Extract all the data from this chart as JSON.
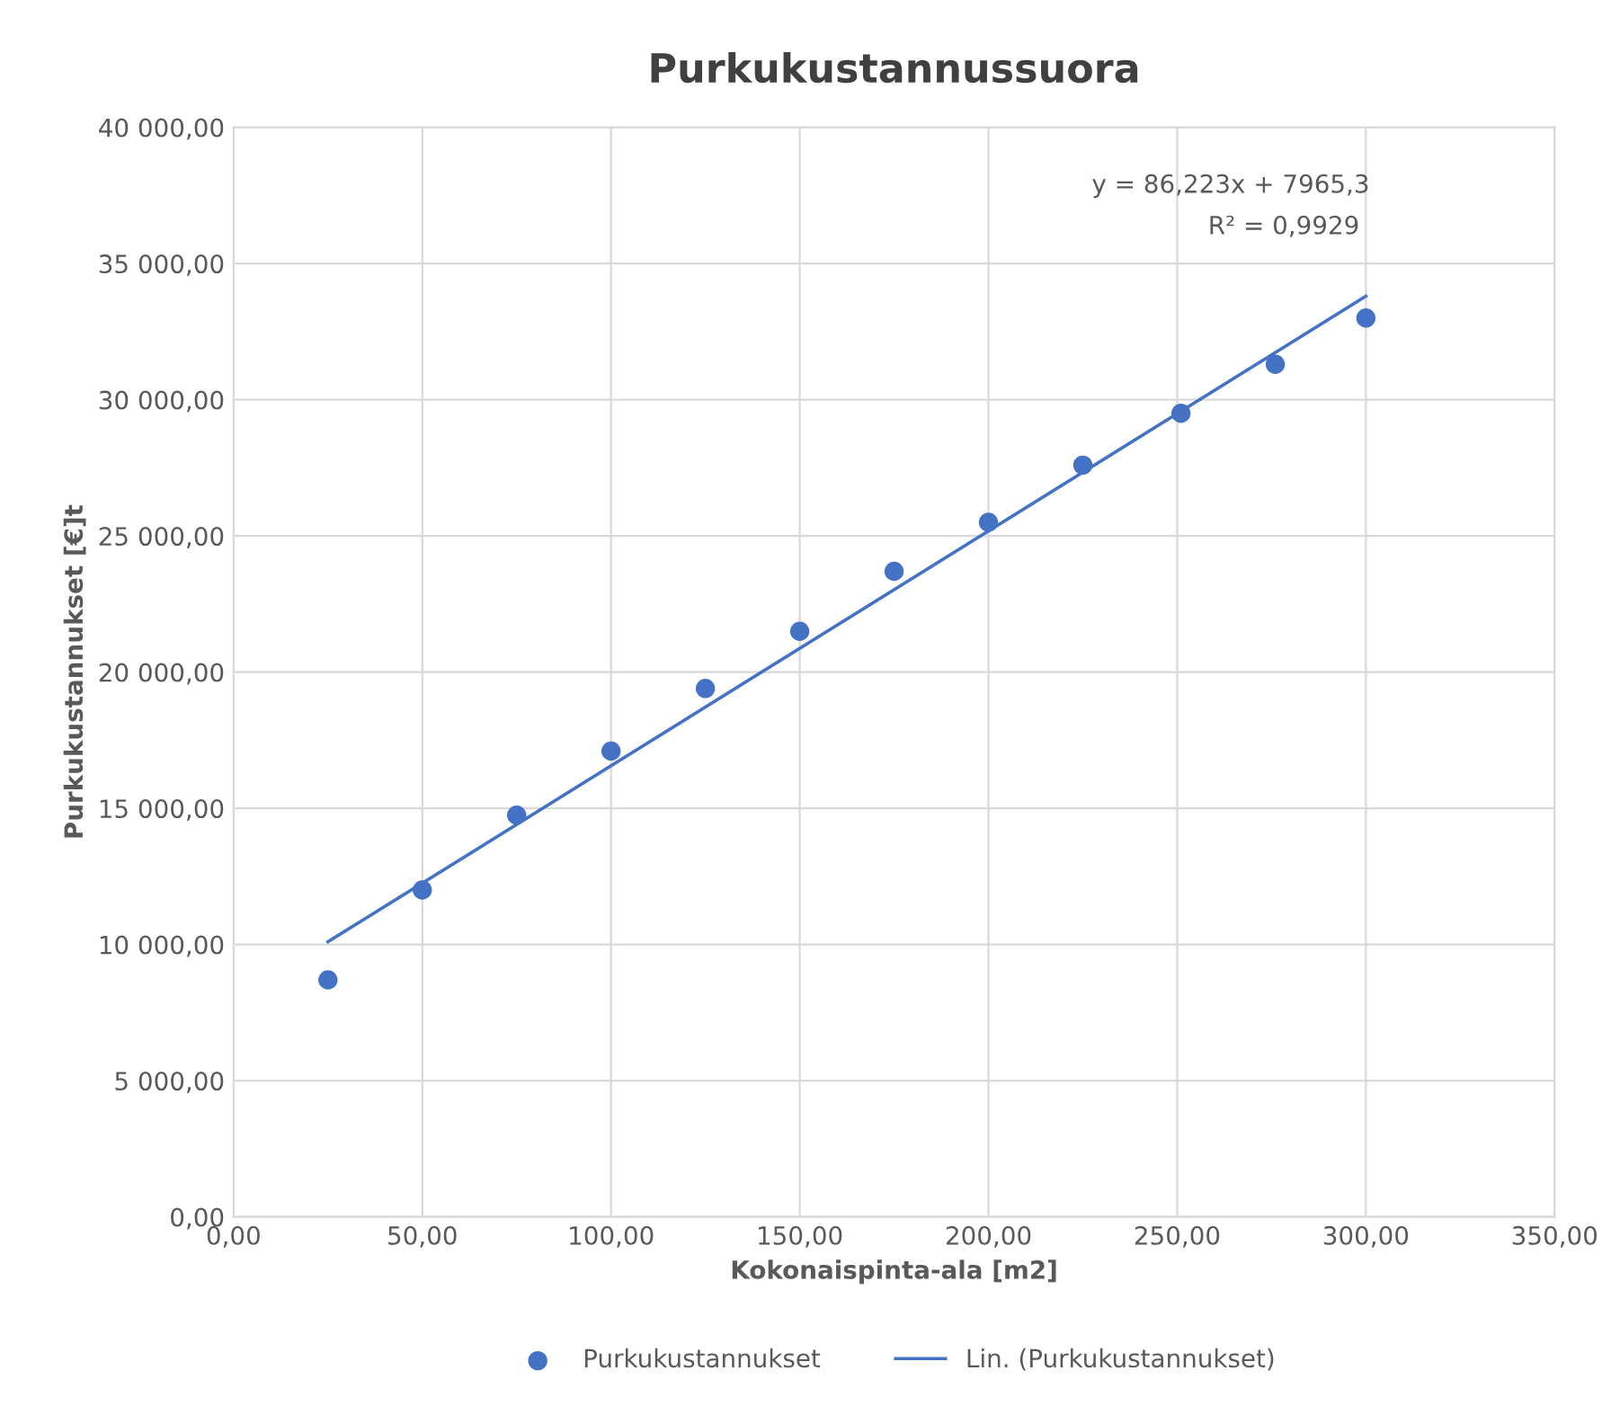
{
  "chart_data": {
    "type": "scatter",
    "title": "Purkukustannussuora",
    "xlabel": "Kokonaispinta-ala [m2]",
    "ylabel": "Purkukustannukset [€]t",
    "series": [
      {
        "name": "Purkukustannukset",
        "color": "#4472c4",
        "marker": "circle",
        "x": [
          25,
          50,
          75,
          100,
          125,
          150,
          175,
          200,
          225,
          251,
          276,
          300
        ],
        "values": [
          8700,
          12000,
          14750,
          17100,
          19400,
          21500,
          23700,
          25500,
          27600,
          29500,
          31300,
          33000
        ]
      },
      {
        "name": "Lin. (Purkukustannukset)",
        "type": "line",
        "color": "#4472c4",
        "line_style": "solid",
        "x": [
          25,
          300
        ],
        "values": [
          10100,
          33800
        ]
      }
    ],
    "annotations": [
      "y = 86,223x + 7965,3",
      "R² = 0,9929"
    ],
    "xlim": [
      0,
      350
    ],
    "ylim": [
      0,
      40000
    ],
    "xticks": [
      {
        "value": 0,
        "label": "0,00"
      },
      {
        "value": 50,
        "label": "50,00"
      },
      {
        "value": 100,
        "label": "100,00"
      },
      {
        "value": 150,
        "label": "150,00"
      },
      {
        "value": 200,
        "label": "200,00"
      },
      {
        "value": 250,
        "label": "250,00"
      },
      {
        "value": 300,
        "label": "300,00"
      },
      {
        "value": 350,
        "label": "350,00"
      }
    ],
    "yticks": [
      {
        "value": 0,
        "label": "0,00"
      },
      {
        "value": 5000,
        "label": "5 000,00"
      },
      {
        "value": 10000,
        "label": "10 000,00"
      },
      {
        "value": 15000,
        "label": "15 000,00"
      },
      {
        "value": 20000,
        "label": "20 000,00"
      },
      {
        "value": 25000,
        "label": "25 000,00"
      },
      {
        "value": 30000,
        "label": "30 000,00"
      },
      {
        "value": 35000,
        "label": "35 000,00"
      },
      {
        "value": 40000,
        "label": "40 000,00"
      }
    ],
    "grid": true,
    "legend": "bottom"
  }
}
